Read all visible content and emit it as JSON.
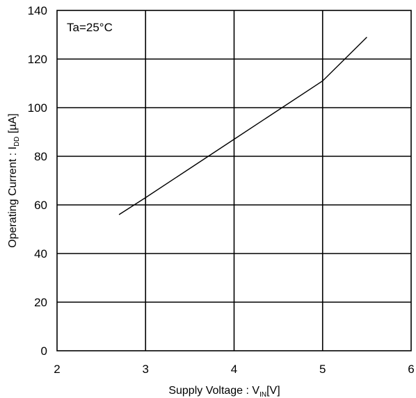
{
  "chart_data": {
    "type": "line",
    "annotation": "Ta=25°C",
    "xlabel": {
      "main": "Supply Voltage : V",
      "sub": "IN",
      "unit": "[V]"
    },
    "ylabel": {
      "main": "Operating Current : I",
      "sub": "DD",
      "unit": " [µA]"
    },
    "xlim": [
      2,
      6
    ],
    "ylim": [
      0,
      140
    ],
    "xticks": [
      "2",
      "3",
      "4",
      "5",
      "6"
    ],
    "yticks": [
      "0",
      "20",
      "40",
      "60",
      "80",
      "100",
      "120",
      "140"
    ],
    "grid": true,
    "series": [
      {
        "x": [
          2.7,
          3.0,
          3.5,
          4.0,
          4.5,
          5.0,
          5.5
        ],
        "y": [
          56,
          63,
          75,
          87,
          99,
          111,
          129
        ]
      }
    ]
  }
}
